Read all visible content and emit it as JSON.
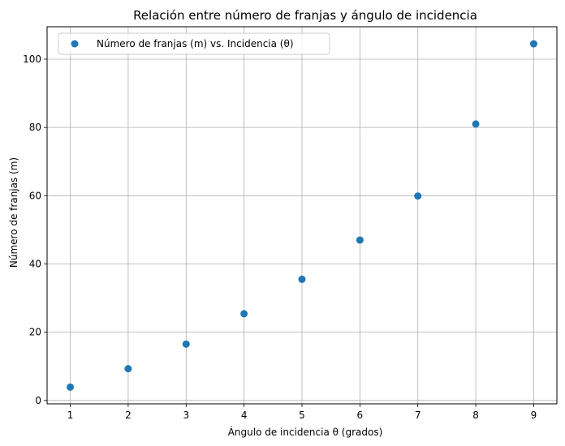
{
  "chart_data": {
    "type": "scatter",
    "title": "Relación entre número de franjas y ángulo de incidencia",
    "xlabel": "Ángulo de incidencia θ (grados)",
    "ylabel": "Número de franjas (m)",
    "xlim": [
      0.6,
      9.4
    ],
    "ylim": [
      -1.0,
      109.5
    ],
    "xticks": [
      1,
      2,
      3,
      4,
      5,
      6,
      7,
      8,
      9
    ],
    "yticks": [
      0,
      20,
      40,
      60,
      80,
      100
    ],
    "grid": true,
    "legend_position": "top-left",
    "series": [
      {
        "name": "Número de franjas (m) vs. Incidencia (θ)",
        "color": "#1f77b4",
        "marker": "circle",
        "x": [
          1,
          2,
          3,
          4,
          5,
          6,
          7,
          8,
          9
        ],
        "y": [
          3.9,
          9.3,
          16.5,
          25.4,
          35.5,
          47.0,
          59.9,
          81.0,
          104.5
        ]
      }
    ]
  }
}
